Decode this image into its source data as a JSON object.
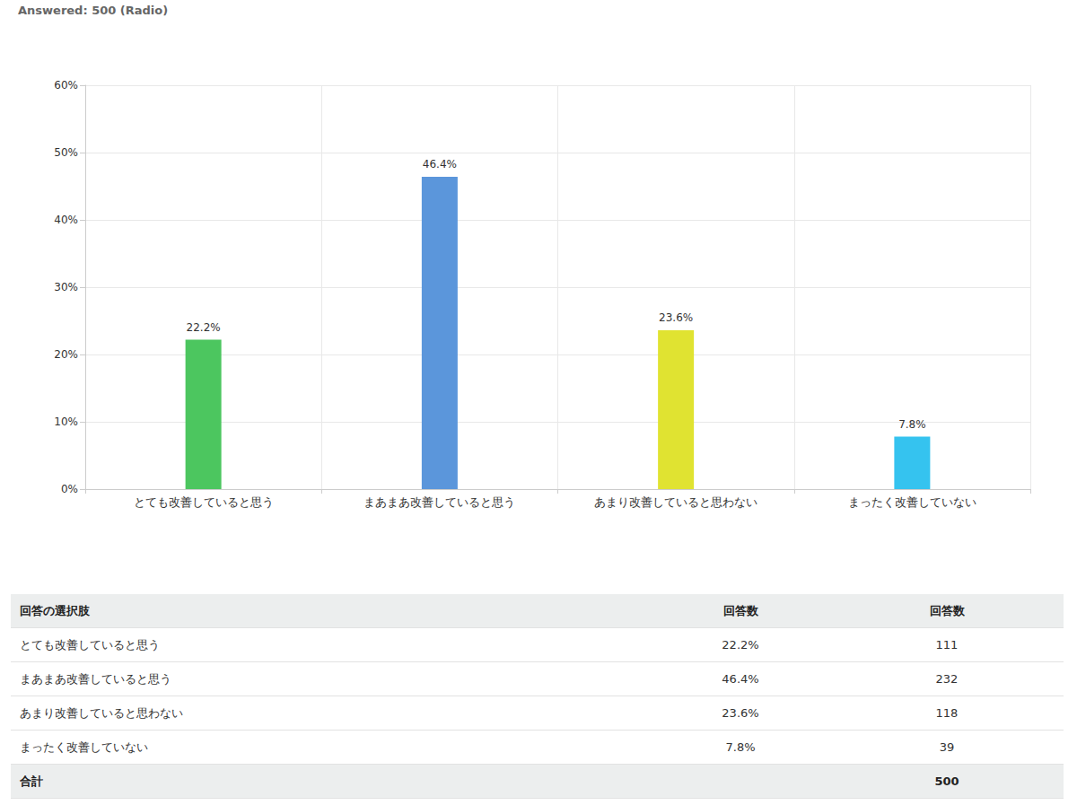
{
  "header": {
    "title": "Answered: 500 (Radio)"
  },
  "chart_data": {
    "type": "bar",
    "categories": [
      "とても改善していると思う",
      "まあまあ改善していると思う",
      "あまり改善していると思わない",
      "まったく改善していない"
    ],
    "values": [
      22.2,
      46.4,
      23.6,
      7.8
    ],
    "value_labels": [
      "22.2%",
      "46.4%",
      "23.6%",
      "7.8%"
    ],
    "colors": [
      "#4cc65f",
      "#5b96db",
      "#e0e331",
      "#35c3ef"
    ],
    "ylim": [
      0,
      60
    ],
    "yticks": [
      {
        "value": 0,
        "label": "0%"
      },
      {
        "value": 10,
        "label": "10%"
      },
      {
        "value": 20,
        "label": "20%"
      },
      {
        "value": 30,
        "label": "30%"
      },
      {
        "value": 40,
        "label": "40%"
      },
      {
        "value": 50,
        "label": "50%"
      },
      {
        "value": 60,
        "label": "60%"
      }
    ],
    "grid": true,
    "data_labels": true
  },
  "table": {
    "columns": [
      "回答の選択肢",
      "回答数",
      "回答数"
    ],
    "rows": [
      [
        "とても改善していると思う",
        "22.2%",
        "111"
      ],
      [
        "まあまあ改善していると思う",
        "46.4%",
        "232"
      ],
      [
        "あまり改善していると思わない",
        "23.6%",
        "118"
      ],
      [
        "まったく改善していない",
        "7.8%",
        "39"
      ]
    ],
    "footer": {
      "label": "合計",
      "total": "500"
    }
  }
}
